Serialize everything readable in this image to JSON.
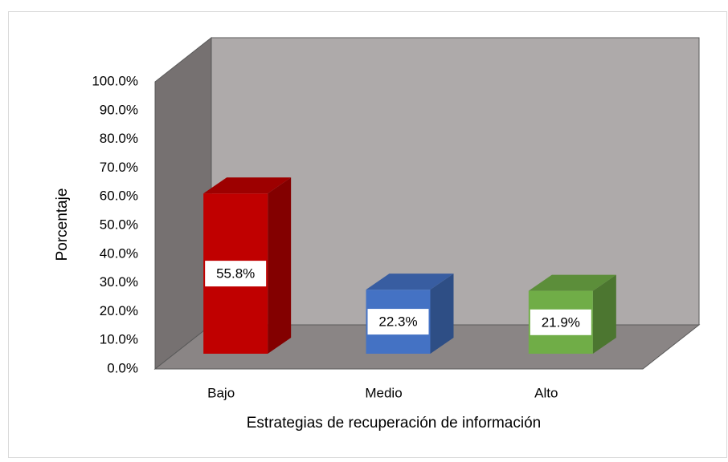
{
  "chart_data": {
    "type": "bar3d",
    "categories": [
      "Bajo",
      "Medio",
      "Alto"
    ],
    "values": [
      55.8,
      22.3,
      21.9
    ],
    "value_labels": [
      "55.8%",
      "22.3%",
      "21.9%"
    ],
    "colors": [
      "#c00000",
      "#4472c4",
      "#70ad47"
    ],
    "xlabel": "Estrategias de recuperación de información",
    "ylabel": "Porcentaje",
    "ylim": [
      0,
      100
    ],
    "yticks": [
      {
        "value": 0,
        "label": "0.0%"
      },
      {
        "value": 10,
        "label": "10.0%"
      },
      {
        "value": 20,
        "label": "20.0%"
      },
      {
        "value": 30,
        "label": "30.0%"
      },
      {
        "value": 40,
        "label": "40.0%"
      },
      {
        "value": 50,
        "label": "50.0%"
      },
      {
        "value": 60,
        "label": "60.0%"
      },
      {
        "value": 70,
        "label": "70.0%"
      },
      {
        "value": 80,
        "label": "80.0%"
      },
      {
        "value": 90,
        "label": "90.0%"
      },
      {
        "value": 100,
        "label": "100.0%"
      }
    ]
  }
}
